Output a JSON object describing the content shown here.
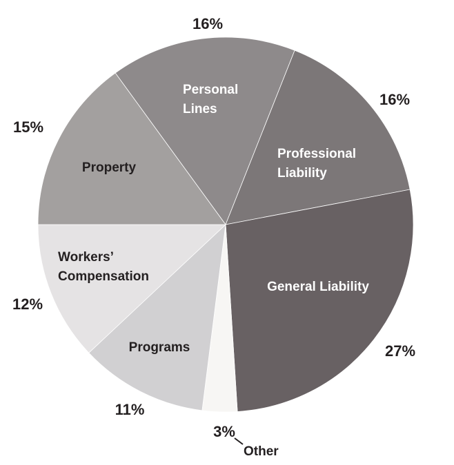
{
  "chart_data": {
    "type": "pie",
    "title": "",
    "start_angle_deg": -36,
    "direction": "clockwise",
    "slices": [
      {
        "label": "Personal Lines",
        "lines": [
          "Personal",
          "Lines"
        ],
        "value": 16,
        "pct_label": "16%",
        "color": "#8e8a8b",
        "text_color": "#ffffff"
      },
      {
        "label": "Professional Liability",
        "lines": [
          "Professional",
          "Liability"
        ],
        "value": 16,
        "pct_label": "16%",
        "color": "#7c7778",
        "text_color": "#ffffff"
      },
      {
        "label": "General Liability",
        "lines": [
          "General Liability"
        ],
        "value": 27,
        "pct_label": "27%",
        "color": "#686163",
        "text_color": "#ffffff"
      },
      {
        "label": "Other",
        "lines": [
          "Other"
        ],
        "value": 3,
        "pct_label": "3%",
        "color": "#f7f6f4",
        "text_color": "#231f20"
      },
      {
        "label": "Programs",
        "lines": [
          "Programs"
        ],
        "value": 11,
        "pct_label": "11%",
        "color": "#d1d0d2",
        "text_color": "#231f20"
      },
      {
        "label": "Workers' Compensation",
        "lines": [
          "Workers’",
          "Compensation"
        ],
        "value": 12,
        "pct_label": "12%",
        "color": "#e5e3e4",
        "text_color": "#231f20"
      },
      {
        "label": "Property",
        "lines": [
          "Property"
        ],
        "value": 15,
        "pct_label": "15%",
        "color": "#a3a09f",
        "text_color": "#231f20"
      }
    ]
  }
}
